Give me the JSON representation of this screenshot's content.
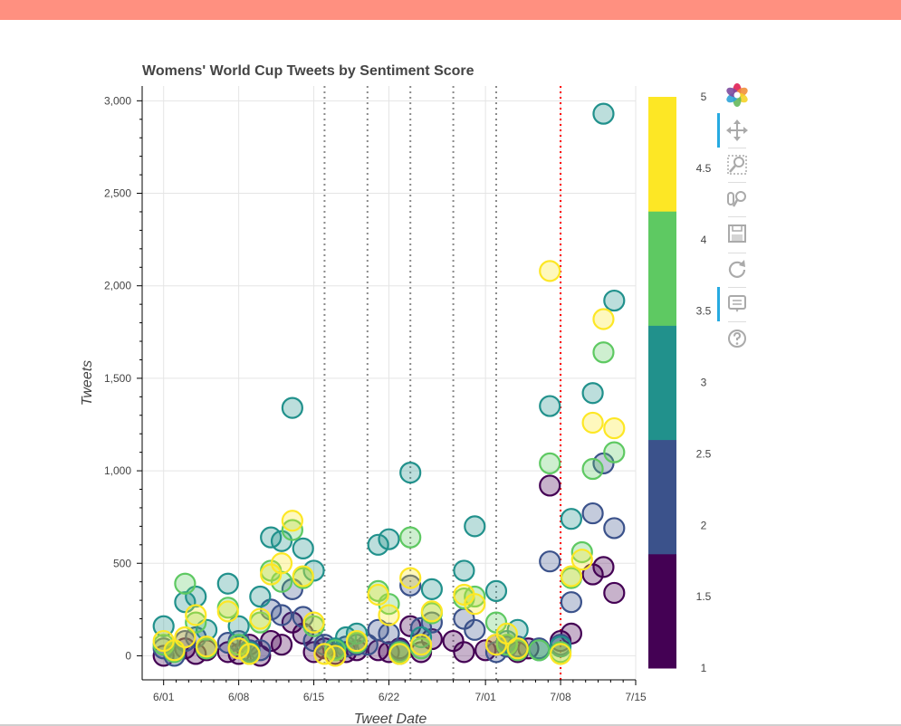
{
  "window": {
    "accent_color": "#ff9080"
  },
  "chart_data": {
    "type": "scatter",
    "title": "Womens' World Cup Tweets by Sentiment Score",
    "xlabel": "Tweet Date",
    "ylabel": "Tweets",
    "x_ticks": [
      "6/01",
      "6/08",
      "6/15",
      "6/22",
      "7/01",
      "7/08",
      "7/15"
    ],
    "y_ticks": [
      "0",
      "500",
      "1,000",
      "1,500",
      "2,000",
      "2,500",
      "3,000"
    ],
    "xlim": [
      "2019-05-30",
      "2019-07-15"
    ],
    "ylim": [
      -130,
      3080
    ],
    "grid": true,
    "vlines_grey_dotted": [
      "2019-06-16",
      "2019-06-20",
      "2019-06-24",
      "2019-06-28",
      "2019-07-02"
    ],
    "vline_red_dotted": "2019-07-08",
    "colorbar": {
      "range": [
        1,
        5
      ],
      "ticks": [
        "1",
        "1.5",
        "2",
        "2.5",
        "3",
        "3.5",
        "4",
        "4.5",
        "5"
      ],
      "colors": [
        "#440154",
        "#3b528b",
        "#21918c",
        "#5ec962",
        "#fde725"
      ]
    },
    "series": [
      {
        "sentiment": 1,
        "points": [
          [
            "06-01",
            0
          ],
          [
            "06-02",
            20
          ],
          [
            "06-03",
            40
          ],
          [
            "06-04",
            10
          ],
          [
            "06-05",
            30
          ],
          [
            "06-07",
            20
          ],
          [
            "06-08",
            10
          ],
          [
            "06-09",
            60
          ],
          [
            "06-10",
            0
          ],
          [
            "06-11",
            80
          ],
          [
            "06-12",
            60
          ],
          [
            "06-13",
            180
          ],
          [
            "06-14",
            120
          ],
          [
            "06-15",
            20
          ],
          [
            "06-16",
            40
          ],
          [
            "06-17",
            10
          ],
          [
            "06-18",
            20
          ],
          [
            "06-19",
            30
          ],
          [
            "06-21",
            30
          ],
          [
            "06-22",
            20
          ],
          [
            "06-23",
            40
          ],
          [
            "06-24",
            160
          ],
          [
            "06-25",
            20
          ],
          [
            "06-26",
            90
          ],
          [
            "06-28",
            80
          ],
          [
            "06-29",
            20
          ],
          [
            "07-01",
            30
          ],
          [
            "07-02",
            60
          ],
          [
            "07-03",
            50
          ],
          [
            "07-04",
            20
          ],
          [
            "07-05",
            40
          ],
          [
            "07-07",
            920
          ],
          [
            "07-08",
            80
          ],
          [
            "07-09",
            120
          ],
          [
            "07-11",
            440
          ],
          [
            "07-12",
            480
          ],
          [
            "07-13",
            340
          ]
        ]
      },
      {
        "sentiment": 2,
        "points": [
          [
            "06-01",
            40
          ],
          [
            "06-02",
            0
          ],
          [
            "06-03",
            80
          ],
          [
            "06-04",
            100
          ],
          [
            "06-07",
            70
          ],
          [
            "06-08",
            80
          ],
          [
            "06-09",
            30
          ],
          [
            "06-10",
            30
          ],
          [
            "06-11",
            250
          ],
          [
            "06-12",
            220
          ],
          [
            "06-13",
            360
          ],
          [
            "06-14",
            210
          ],
          [
            "06-15",
            80
          ],
          [
            "06-16",
            60
          ],
          [
            "06-17",
            30
          ],
          [
            "06-18",
            50
          ],
          [
            "06-19",
            60
          ],
          [
            "06-20",
            60
          ],
          [
            "06-21",
            140
          ],
          [
            "06-22",
            120
          ],
          [
            "06-23",
            30
          ],
          [
            "06-24",
            380
          ],
          [
            "06-25",
            150
          ],
          [
            "06-26",
            180
          ],
          [
            "06-29",
            200
          ],
          [
            "06-30",
            140
          ],
          [
            "07-02",
            20
          ],
          [
            "07-03",
            50
          ],
          [
            "07-04",
            50
          ],
          [
            "07-06",
            40
          ],
          [
            "07-07",
            510
          ],
          [
            "07-08",
            60
          ],
          [
            "07-09",
            290
          ],
          [
            "07-11",
            770
          ],
          [
            "07-12",
            1040
          ],
          [
            "07-13",
            690
          ]
        ]
      },
      {
        "sentiment": 3,
        "points": [
          [
            "06-01",
            160
          ],
          [
            "06-02",
            30
          ],
          [
            "06-03",
            290
          ],
          [
            "06-04",
            320
          ],
          [
            "06-05",
            140
          ],
          [
            "06-07",
            390
          ],
          [
            "06-08",
            160
          ],
          [
            "06-09",
            20
          ],
          [
            "06-10",
            320
          ],
          [
            "06-11",
            640
          ],
          [
            "06-12",
            620
          ],
          [
            "06-13",
            1340
          ],
          [
            "06-14",
            580
          ],
          [
            "06-15",
            460
          ],
          [
            "06-17",
            40
          ],
          [
            "06-18",
            100
          ],
          [
            "06-19",
            120
          ],
          [
            "06-21",
            600
          ],
          [
            "06-22",
            630
          ],
          [
            "06-23",
            10
          ],
          [
            "06-24",
            990
          ],
          [
            "06-25",
            100
          ],
          [
            "06-26",
            360
          ],
          [
            "06-29",
            460
          ],
          [
            "06-30",
            700
          ],
          [
            "07-02",
            350
          ],
          [
            "07-03",
            80
          ],
          [
            "07-04",
            140
          ],
          [
            "07-06",
            30
          ],
          [
            "07-07",
            1350
          ],
          [
            "07-08",
            50
          ],
          [
            "07-09",
            740
          ],
          [
            "07-11",
            1420
          ],
          [
            "07-12",
            2930
          ],
          [
            "07-13",
            1920
          ]
        ]
      },
      {
        "sentiment": 4,
        "points": [
          [
            "06-01",
            60
          ],
          [
            "06-02",
            20
          ],
          [
            "06-03",
            390
          ],
          [
            "06-04",
            180
          ],
          [
            "06-05",
            40
          ],
          [
            "06-07",
            260
          ],
          [
            "06-08",
            60
          ],
          [
            "06-09",
            10
          ],
          [
            "06-10",
            180
          ],
          [
            "06-11",
            460
          ],
          [
            "06-12",
            400
          ],
          [
            "06-13",
            680
          ],
          [
            "06-14",
            420
          ],
          [
            "06-15",
            160
          ],
          [
            "06-17",
            30
          ],
          [
            "06-19",
            70
          ],
          [
            "06-21",
            350
          ],
          [
            "06-22",
            280
          ],
          [
            "06-23",
            20
          ],
          [
            "06-24",
            640
          ],
          [
            "06-25",
            40
          ],
          [
            "06-26",
            230
          ],
          [
            "06-29",
            310
          ],
          [
            "06-30",
            320
          ],
          [
            "07-02",
            180
          ],
          [
            "07-03",
            60
          ],
          [
            "07-04",
            30
          ],
          [
            "07-06",
            30
          ],
          [
            "07-07",
            1040
          ],
          [
            "07-08",
            20
          ],
          [
            "07-09",
            420
          ],
          [
            "07-10",
            560
          ],
          [
            "07-11",
            1010
          ],
          [
            "07-12",
            1640
          ],
          [
            "07-13",
            1100
          ]
        ]
      },
      {
        "sentiment": 5,
        "points": [
          [
            "06-01",
            80
          ],
          [
            "06-02",
            30
          ],
          [
            "06-03",
            100
          ],
          [
            "06-04",
            220
          ],
          [
            "06-05",
            50
          ],
          [
            "06-07",
            240
          ],
          [
            "06-08",
            40
          ],
          [
            "06-09",
            10
          ],
          [
            "06-10",
            200
          ],
          [
            "06-11",
            440
          ],
          [
            "06-12",
            500
          ],
          [
            "06-13",
            730
          ],
          [
            "06-14",
            430
          ],
          [
            "06-15",
            180
          ],
          [
            "06-16",
            10
          ],
          [
            "06-17",
            0
          ],
          [
            "06-19",
            80
          ],
          [
            "06-21",
            330
          ],
          [
            "06-22",
            220
          ],
          [
            "06-23",
            10
          ],
          [
            "06-24",
            420
          ],
          [
            "06-25",
            60
          ],
          [
            "06-26",
            240
          ],
          [
            "06-29",
            330
          ],
          [
            "06-30",
            280
          ],
          [
            "07-02",
            60
          ],
          [
            "07-03",
            120
          ],
          [
            "07-04",
            40
          ],
          [
            "07-07",
            2080
          ],
          [
            "07-08",
            10
          ],
          [
            "07-09",
            430
          ],
          [
            "07-10",
            520
          ],
          [
            "07-11",
            1260
          ],
          [
            "07-12",
            1820
          ],
          [
            "07-13",
            1230
          ]
        ]
      }
    ]
  },
  "toolbar": {
    "tools": [
      {
        "name": "bokeh-logo-icon",
        "active": false
      },
      {
        "name": "pan-icon",
        "active": true
      },
      {
        "name": "box-zoom-icon",
        "active": false
      },
      {
        "name": "wheel-zoom-icon",
        "active": false
      },
      {
        "name": "save-icon",
        "active": false
      },
      {
        "name": "reset-icon",
        "active": false
      },
      {
        "name": "hover-icon",
        "active": true
      },
      {
        "name": "help-icon",
        "active": false
      }
    ]
  }
}
